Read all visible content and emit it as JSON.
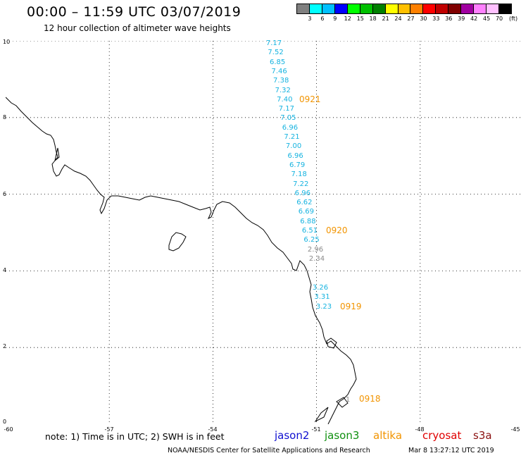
{
  "header": {
    "title": "00:00 – 11:59 UTC 03/07/2019",
    "subtitle": "12 hour collection of altimeter wave heights"
  },
  "legend": {
    "unit_label": "(ft)",
    "colors": [
      "#808080",
      "#00ffff",
      "#00c0ff",
      "#0000ff",
      "#00ff00",
      "#00c000",
      "#008000",
      "#ffff00",
      "#ffc000",
      "#ff8000",
      "#ff0000",
      "#c00000",
      "#800000",
      "#a000a0",
      "#ff80ff",
      "#ffc0ff",
      "#000000"
    ],
    "labels": [
      "3",
      "6",
      "9",
      "12",
      "15",
      "18",
      "21",
      "24",
      "27",
      "30",
      "33",
      "36",
      "39",
      "42",
      "45",
      "70"
    ]
  },
  "map": {
    "lat_labels": [
      "10",
      "8",
      "6",
      "4",
      "2",
      "0"
    ],
    "lon_labels": [
      "-60",
      "-57",
      "-54",
      "-51",
      "-48",
      "-45"
    ],
    "wave_heights": [
      "7.17",
      "7.52",
      "6.85",
      "7.46",
      "7.38",
      "7.32",
      "7.40",
      "7.17",
      "7.05",
      "6.96",
      "7.21",
      "7.00",
      "6.96",
      "6.79",
      "7.18",
      "7.22",
      "6.96",
      "6.62",
      "6.69",
      "6.88",
      "6.51",
      "6.25",
      "2.96",
      "2.34",
      "3.26",
      "3.31",
      "3.23",
      "1"
    ],
    "times": [
      "0921",
      "0920",
      "0919",
      "0918"
    ],
    "colors": {
      "cyan_track": "#16b3e0",
      "gray_track": "#8a8a8a",
      "time_label": "#f29400",
      "coast": "#000000",
      "grid": "#000000"
    }
  },
  "footer": {
    "note": "note: 1) Time is in UTC; 2) SWH is in feet",
    "satellites": [
      {
        "name": "jason2",
        "color": "#1010d0"
      },
      {
        "name": "jason3",
        "color": "#109010"
      },
      {
        "name": "altika",
        "color": "#f29400"
      },
      {
        "name": "cryosat",
        "color": "#e00000"
      },
      {
        "name": "s3a",
        "color": "#8b1010"
      }
    ],
    "credit": "NOAA/NESDIS Center for Satellite Applications and Research",
    "timestamp": "Mar  8 13:27:12 UTC 2019"
  }
}
